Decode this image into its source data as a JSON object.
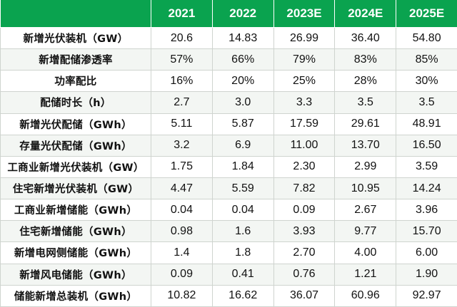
{
  "table": {
    "header_label": "",
    "years": [
      "2021",
      "2022",
      "2023E",
      "2024E",
      "2025E"
    ],
    "rows": [
      {
        "label": "新增光伏装机（GW）",
        "values": [
          "20.6",
          "14.83",
          "26.99",
          "36.40",
          "54.80"
        ]
      },
      {
        "label": "新增配储渗透率",
        "values": [
          "57%",
          "66%",
          "79%",
          "83%",
          "85%"
        ]
      },
      {
        "label": "功率配比",
        "values": [
          "16%",
          "20%",
          "25%",
          "28%",
          "30%"
        ]
      },
      {
        "label": "配储时长（h）",
        "values": [
          "2.7",
          "3.0",
          "3.3",
          "3.5",
          "3.5"
        ]
      },
      {
        "label": "新增光伏配储（GWh）",
        "values": [
          "5.11",
          "5.87",
          "17.59",
          "29.61",
          "48.91"
        ]
      },
      {
        "label": "存量光伏配储（GWh）",
        "values": [
          "3.2",
          "6.9",
          "11.00",
          "13.70",
          "16.50"
        ]
      },
      {
        "label": "工商业新增光伏装机（GW）",
        "values": [
          "1.75",
          "1.84",
          "2.30",
          "2.99",
          "3.59"
        ]
      },
      {
        "label": "住宅新增光伏装机（GW）",
        "values": [
          "4.47",
          "5.59",
          "7.82",
          "10.95",
          "14.24"
        ]
      },
      {
        "label": "工商业新增储能（GWh）",
        "values": [
          "0.04",
          "0.04",
          "0.09",
          "2.67",
          "3.96"
        ]
      },
      {
        "label": "住宅新增储能（GWh）",
        "values": [
          "0.98",
          "1.6",
          "3.93",
          "9.77",
          "15.70"
        ]
      },
      {
        "label": "新增电网侧储能（GWh）",
        "values": [
          "1.4",
          "1.8",
          "2.70",
          "4.00",
          "6.00"
        ]
      },
      {
        "label": "新增风电储能（GWh）",
        "values": [
          "0.09",
          "0.41",
          "0.76",
          "1.21",
          "1.90"
        ]
      },
      {
        "label": "储能新增总装机（GWh）",
        "values": [
          "10.82",
          "16.62",
          "36.07",
          "60.96",
          "92.97"
        ]
      }
    ]
  },
  "colors": {
    "header_bg": "#0aa34f",
    "header_text": "#ffffff",
    "grid": "#cfd4cf"
  }
}
